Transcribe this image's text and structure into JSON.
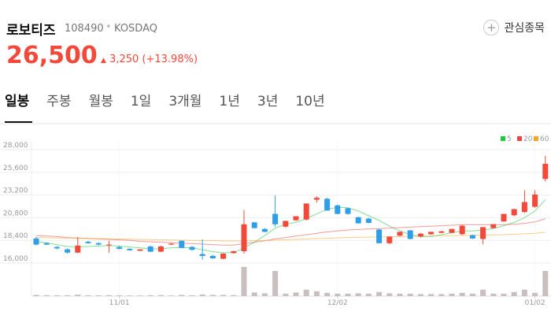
{
  "header": {
    "name": "로보티즈",
    "code": "108490",
    "market": "KOSDAQ",
    "watch_button": "관심종목"
  },
  "quote": {
    "price": "26,500",
    "change": "3,250",
    "change_pct": "(+13.98%)"
  },
  "tabs": [
    "일봉",
    "주봉",
    "월봉",
    "1일",
    "3개월",
    "1년",
    "3년",
    "10년"
  ],
  "chart_data": {
    "type": "candlestick",
    "categories": [
      null,
      null,
      null,
      null,
      null,
      null,
      null,
      null,
      "11/01",
      null,
      null,
      null,
      null,
      null,
      null,
      null,
      null,
      null,
      null,
      null,
      null,
      null,
      null,
      null,
      null,
      null,
      null,
      null,
      null,
      "12/02",
      null,
      null,
      null,
      null,
      null,
      null,
      null,
      null,
      null,
      null,
      null,
      null,
      null,
      null,
      null,
      null,
      null,
      null,
      "01/02",
      null
    ],
    "ohlc": [
      [
        18600,
        18750,
        17850,
        17950
      ],
      [
        18100,
        18200,
        17900,
        17950
      ],
      [
        17700,
        17800,
        17450,
        17550
      ],
      [
        17450,
        17550,
        17000,
        17100
      ],
      [
        17100,
        18750,
        17050,
        17850
      ],
      [
        18250,
        18350,
        18050,
        18100
      ],
      [
        18100,
        18200,
        17850,
        17950
      ],
      [
        17950,
        18350,
        17100,
        17950
      ],
      [
        17700,
        17800,
        17450,
        17500
      ],
      [
        17500,
        17600,
        17300,
        17350
      ],
      [
        17300,
        17450,
        17250,
        17450
      ],
      [
        17750,
        17850,
        17150,
        17200
      ],
      [
        17200,
        17850,
        17150,
        17750
      ],
      [
        17950,
        18100,
        17900,
        18050
      ],
      [
        18350,
        18400,
        17550,
        17600
      ],
      [
        17700,
        17800,
        17300,
        17400
      ],
      [
        16950,
        18500,
        16350,
        16750
      ],
      [
        16750,
        16850,
        16450,
        16500
      ],
      [
        16450,
        17050,
        16400,
        17000
      ],
      [
        17050,
        17300,
        17000,
        17250
      ],
      [
        17250,
        21600,
        17000,
        20100
      ],
      [
        20300,
        20350,
        19650,
        19700
      ],
      [
        19600,
        19700,
        19250,
        19300
      ],
      [
        21200,
        23150,
        19850,
        20100
      ],
      [
        19850,
        20500,
        19750,
        20450
      ],
      [
        20530,
        20950,
        20450,
        20950
      ],
      [
        20600,
        22300,
        20500,
        22300
      ],
      [
        22700,
        23050,
        22400,
        22900
      ],
      [
        22800,
        22900,
        21550,
        21550
      ],
      [
        22100,
        22200,
        21150,
        21200
      ],
      [
        21800,
        21850,
        21100,
        21200
      ],
      [
        20850,
        20900,
        20150,
        20200
      ],
      [
        20700,
        20800,
        20200,
        20250
      ],
      [
        19550,
        19600,
        18100,
        18100
      ],
      [
        18100,
        18800,
        18000,
        18800
      ],
      [
        18900,
        19300,
        18800,
        19300
      ],
      [
        19450,
        19500,
        18500,
        18550
      ],
      [
        18800,
        19200,
        18700,
        19100
      ],
      [
        19050,
        19300,
        19000,
        19300
      ],
      [
        19200,
        19400,
        19150,
        19350
      ],
      [
        19200,
        19650,
        19150,
        19600
      ],
      [
        19050,
        20050,
        18950,
        19950
      ],
      [
        18950,
        19000,
        18550,
        18600
      ],
      [
        18550,
        19800,
        18000,
        19800
      ],
      [
        19700,
        20150,
        19650,
        20100
      ],
      [
        20400,
        21200,
        20350,
        21200
      ],
      [
        21050,
        21750,
        20950,
        21700
      ],
      [
        21400,
        23700,
        21300,
        22450
      ],
      [
        21950,
        23700,
        21850,
        23250
      ],
      [
        24900,
        27350,
        24650,
        26500
      ]
    ],
    "volume": [
      150,
      120,
      100,
      100,
      180,
      100,
      100,
      120,
      100,
      80,
      80,
      100,
      120,
      80,
      150,
      100,
      200,
      150,
      150,
      120,
      3600,
      450,
      350,
      3100,
      300,
      450,
      800,
      600,
      400,
      300,
      300,
      350,
      300,
      500,
      350,
      300,
      300,
      250,
      250,
      250,
      300,
      400,
      300,
      800,
      300,
      300,
      500,
      800,
      400,
      3100
    ],
    "up_color": "#f2493a",
    "down_color": "#2e9ee8",
    "volume_color": "#c9bfbf",
    "series": [
      {
        "name": "5",
        "color": "#19c93b",
        "values": [
          18250,
          18150,
          17950,
          17750,
          17700,
          17750,
          17800,
          17850,
          17800,
          17700,
          17600,
          17500,
          17500,
          17600,
          17650,
          17600,
          17400,
          17200,
          17100,
          17100,
          17600,
          18200,
          18900,
          19700,
          20100,
          20300,
          20700,
          21200,
          21700,
          21900,
          21850,
          21500,
          21000,
          20500,
          19900,
          19400,
          19000,
          18800,
          18800,
          19000,
          19200,
          19400,
          19400,
          19500,
          19650,
          19950,
          20300,
          20800,
          21500,
          22700
        ]
      },
      {
        "name": "20",
        "color": "#f04545",
        "values": [
          18900,
          18850,
          18800,
          18700,
          18650,
          18600,
          18550,
          18500,
          18450,
          18400,
          18300,
          18250,
          18200,
          18150,
          18100,
          18050,
          18000,
          17950,
          17900,
          17900,
          18050,
          18200,
          18350,
          18550,
          18700,
          18850,
          19000,
          19150,
          19300,
          19400,
          19500,
          19550,
          19600,
          19650,
          19700,
          19750,
          19800,
          19850,
          19900,
          19950,
          20000,
          20050,
          20050,
          20050,
          20050,
          20050,
          20100,
          20200,
          20350,
          20700
        ]
      },
      {
        "name": "60",
        "color": "#f5a623",
        "values": [
          18700,
          18680,
          18660,
          18640,
          18620,
          18600,
          18580,
          18560,
          18540,
          18520,
          18500,
          18480,
          18460,
          18440,
          18420,
          18400,
          18380,
          18360,
          18340,
          18330,
          18340,
          18360,
          18380,
          18420,
          18460,
          18500,
          18540,
          18580,
          18620,
          18660,
          18700,
          18720,
          18740,
          18760,
          18780,
          18800,
          18820,
          18840,
          18860,
          18880,
          18900,
          18920,
          18940,
          18960,
          18980,
          19000,
          19050,
          19100,
          19150,
          19250
        ]
      }
    ],
    "ylim": [
      16000,
      28000
    ],
    "yticks": [
      {
        "value": 28000,
        "label": "28,000"
      },
      {
        "value": 25600,
        "label": "25,600"
      },
      {
        "value": 23200,
        "label": "23,200"
      },
      {
        "value": 20800,
        "label": "20,800"
      },
      {
        "value": 18400,
        "label": "18,400"
      },
      {
        "value": 16000,
        "label": "16,000"
      }
    ],
    "grid": true
  }
}
